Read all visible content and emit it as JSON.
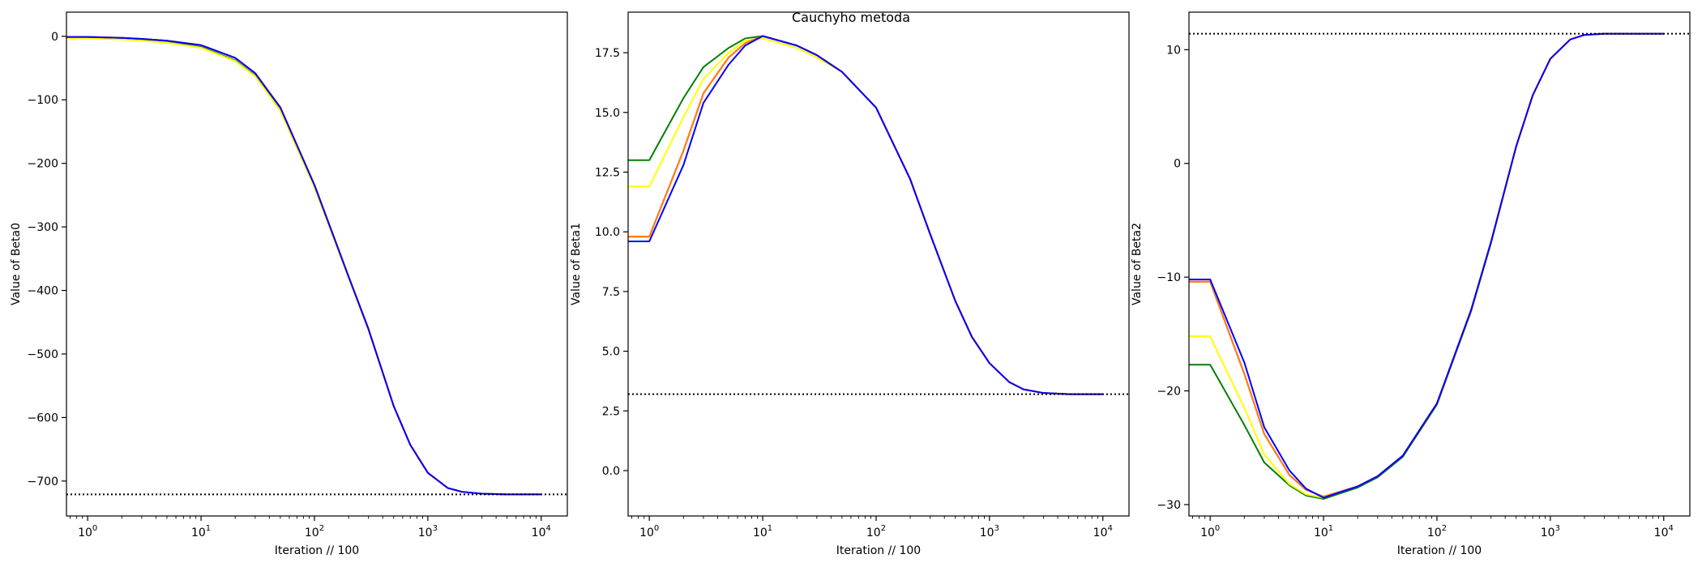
{
  "figure": {
    "suptitle": "Cauchyho metoda"
  },
  "chart_data": [
    {
      "type": "line",
      "xlabel": "Iteration // 100",
      "ylabel": "Value of Beta0",
      "xscale": "log",
      "xlim": [
        0.65,
        17000
      ],
      "ylim": [
        -755,
        38
      ],
      "xticks": [
        1,
        10,
        100,
        1000,
        10000
      ],
      "xtick_labels": [
        {
          "base": "10",
          "exp": "0"
        },
        {
          "base": "10",
          "exp": "1"
        },
        {
          "base": "10",
          "exp": "2"
        },
        {
          "base": "10",
          "exp": "3"
        },
        {
          "base": "10",
          "exp": "4"
        }
      ],
      "yticks": [
        0,
        -100,
        -200,
        -300,
        -400,
        -500,
        -600,
        -700
      ],
      "ytick_labels": [
        "0",
        "−100",
        "−200",
        "−300",
        "−400",
        "−500",
        "−600",
        "−700"
      ],
      "reference_line": {
        "y": -721.0,
        "style": "dotted",
        "color": "#000000"
      },
      "grid": false,
      "series": [
        {
          "color": "#008000",
          "x": [
            0.65,
            1,
            2,
            3,
            5,
            10,
            20,
            30,
            50,
            100,
            200,
            300,
            500,
            700,
            1000,
            1500,
            2000,
            3000,
            5000,
            10000
          ],
          "y": [
            -1.5,
            -2,
            -4,
            -6,
            -9,
            -17,
            -38,
            -62,
            -116,
            -237,
            -380,
            -462,
            -582,
            -643,
            -687,
            -711,
            -717,
            -720,
            -721,
            -721
          ]
        },
        {
          "color": "#ffff00",
          "x": [
            0.65,
            1,
            2,
            3,
            5,
            10,
            20,
            30,
            50,
            100,
            200,
            300,
            500,
            700,
            1000,
            1500,
            2000,
            3000,
            5000,
            10000
          ],
          "y": [
            -3,
            -3.5,
            -5,
            -7,
            -10,
            -18,
            -39,
            -63,
            -117,
            -238,
            -380,
            -462,
            -582,
            -643,
            -687,
            -711,
            -717,
            -720,
            -721,
            -721
          ]
        },
        {
          "color": "#ff0000",
          "x": [
            0.65,
            1,
            2,
            3,
            5,
            10,
            20,
            30,
            50,
            100,
            200,
            300,
            500,
            700,
            1000,
            1500,
            2000,
            3000,
            5000,
            10000
          ],
          "y": [
            -1,
            -1,
            -2.5,
            -4,
            -7,
            -14,
            -34,
            -58,
            -112,
            -234,
            -378,
            -461,
            -582,
            -643,
            -687,
            -711,
            -717,
            -720,
            -721,
            -721
          ]
        },
        {
          "color": "#ff7f0e",
          "x": [
            0.65,
            1,
            2,
            3,
            5,
            10,
            20,
            30,
            50,
            100,
            200,
            300,
            500,
            700,
            1000,
            1500,
            2000,
            3000,
            5000,
            10000
          ],
          "y": [
            -1,
            -1,
            -2.5,
            -4,
            -7,
            -14,
            -34,
            -58,
            -112,
            -234,
            -378,
            -461,
            -582,
            -643,
            -687,
            -711,
            -717,
            -720,
            -721,
            -721
          ]
        },
        {
          "color": "#0000ff",
          "x": [
            0.65,
            1,
            2,
            3,
            5,
            10,
            20,
            30,
            50,
            100,
            200,
            300,
            500,
            700,
            1000,
            1500,
            2000,
            3000,
            5000,
            10000
          ],
          "y": [
            -1,
            -1,
            -2.5,
            -4,
            -7,
            -14,
            -34,
            -58,
            -112,
            -234,
            -378,
            -461,
            -582,
            -643,
            -687,
            -711,
            -717,
            -720,
            -721,
            -721
          ]
        }
      ]
    },
    {
      "type": "line",
      "xlabel": "Iteration // 100",
      "ylabel": "Value of Beta1",
      "xscale": "log",
      "xlim": [
        0.65,
        17000
      ],
      "ylim": [
        -1.9,
        19.2
      ],
      "xticks": [
        1,
        10,
        100,
        1000,
        10000
      ],
      "xtick_labels": [
        {
          "base": "10",
          "exp": "0"
        },
        {
          "base": "10",
          "exp": "1"
        },
        {
          "base": "10",
          "exp": "2"
        },
        {
          "base": "10",
          "exp": "3"
        },
        {
          "base": "10",
          "exp": "4"
        }
      ],
      "yticks": [
        0.0,
        2.5,
        5.0,
        7.5,
        10.0,
        12.5,
        15.0,
        17.5
      ],
      "ytick_labels": [
        "0.0",
        "2.5",
        "5.0",
        "7.5",
        "10.0",
        "12.5",
        "15.0",
        "17.5"
      ],
      "reference_line": {
        "y": 3.2,
        "style": "dotted",
        "color": "#000000"
      },
      "grid": false,
      "series": [
        {
          "color": "#008000",
          "x": [
            0.65,
            1,
            2,
            3,
            5,
            7,
            10,
            20,
            30,
            50,
            100,
            200,
            300,
            500,
            700,
            1000,
            1500,
            2000,
            3000,
            5000,
            10000
          ],
          "y": [
            13.0,
            13.0,
            15.6,
            16.9,
            17.7,
            18.1,
            18.2,
            17.8,
            17.4,
            16.7,
            15.2,
            12.2,
            9.9,
            7.1,
            5.6,
            4.5,
            3.7,
            3.4,
            3.25,
            3.2,
            3.2
          ]
        },
        {
          "color": "#ffff00",
          "x": [
            0.65,
            1,
            2,
            3,
            5,
            7,
            10,
            20,
            30,
            50,
            100,
            200,
            300,
            500,
            700,
            1000,
            1500,
            2000,
            3000,
            5000,
            10000
          ],
          "y": [
            11.9,
            11.9,
            14.8,
            16.4,
            17.5,
            18.0,
            18.1,
            17.7,
            17.3,
            16.7,
            15.2,
            12.2,
            9.9,
            7.1,
            5.6,
            4.5,
            3.7,
            3.4,
            3.25,
            3.2,
            3.2
          ]
        },
        {
          "color": "#ff0000",
          "x": [
            0.65,
            1,
            2,
            3,
            5,
            7,
            10,
            20,
            30,
            50,
            100,
            200,
            300,
            500,
            700,
            1000,
            1500,
            2000,
            3000,
            5000,
            10000
          ],
          "y": [
            9.8,
            9.8,
            13.4,
            15.8,
            17.3,
            17.9,
            18.2,
            17.8,
            17.4,
            16.7,
            15.2,
            12.2,
            9.9,
            7.1,
            5.6,
            4.5,
            3.7,
            3.4,
            3.25,
            3.2,
            3.2
          ]
        },
        {
          "color": "#ff7f0e",
          "x": [
            0.65,
            1,
            2,
            3,
            5,
            7,
            10,
            20,
            30,
            50,
            100,
            200,
            300,
            500,
            700,
            1000,
            1500,
            2000,
            3000,
            5000,
            10000
          ],
          "y": [
            9.8,
            9.8,
            13.4,
            15.8,
            17.3,
            17.9,
            18.2,
            17.8,
            17.4,
            16.7,
            15.2,
            12.2,
            9.9,
            7.1,
            5.6,
            4.5,
            3.7,
            3.4,
            3.25,
            3.2,
            3.2
          ]
        },
        {
          "color": "#0000ff",
          "x": [
            0.65,
            1,
            2,
            3,
            5,
            7,
            10,
            20,
            30,
            50,
            100,
            200,
            300,
            500,
            700,
            1000,
            1500,
            2000,
            3000,
            5000,
            10000
          ],
          "y": [
            9.6,
            9.6,
            12.8,
            15.4,
            17.0,
            17.8,
            18.2,
            17.8,
            17.4,
            16.7,
            15.2,
            12.2,
            9.9,
            7.1,
            5.6,
            4.5,
            3.7,
            3.4,
            3.25,
            3.2,
            3.2
          ]
        }
      ]
    },
    {
      "type": "line",
      "xlabel": "Iteration // 100",
      "ylabel": "Value of Beta2",
      "xscale": "log",
      "xlim": [
        0.65,
        17000
      ],
      "ylim": [
        -31.0,
        13.3
      ],
      "xticks": [
        1,
        10,
        100,
        1000,
        10000
      ],
      "xtick_labels": [
        {
          "base": "10",
          "exp": "0"
        },
        {
          "base": "10",
          "exp": "1"
        },
        {
          "base": "10",
          "exp": "2"
        },
        {
          "base": "10",
          "exp": "3"
        },
        {
          "base": "10",
          "exp": "4"
        }
      ],
      "yticks": [
        10,
        0,
        -10,
        -20,
        -30
      ],
      "ytick_labels": [
        "10",
        "0",
        "−10",
        "−20",
        "−30"
      ],
      "reference_line": {
        "y": 11.4,
        "style": "dotted",
        "color": "#000000"
      },
      "grid": false,
      "series": [
        {
          "color": "#008000",
          "x": [
            0.65,
            1,
            2,
            3,
            5,
            7,
            10,
            20,
            30,
            50,
            100,
            200,
            300,
            500,
            700,
            1000,
            1500,
            2000,
            3000,
            5000,
            10000
          ],
          "y": [
            -17.7,
            -17.7,
            -23.0,
            -26.3,
            -28.3,
            -29.2,
            -29.5,
            -28.5,
            -27.6,
            -25.8,
            -21.2,
            -13.0,
            -7.0,
            1.5,
            6.0,
            9.2,
            10.9,
            11.3,
            11.4,
            11.4,
            11.4
          ]
        },
        {
          "color": "#ffff00",
          "x": [
            0.65,
            1,
            2,
            3,
            5,
            7,
            10,
            20,
            30,
            50,
            100,
            200,
            300,
            500,
            700,
            1000,
            1500,
            2000,
            3000,
            5000,
            10000
          ],
          "y": [
            -15.2,
            -15.2,
            -21.5,
            -25.6,
            -28.2,
            -29.1,
            -29.4,
            -28.4,
            -27.5,
            -25.7,
            -21.1,
            -12.9,
            -6.9,
            1.5,
            6.0,
            9.2,
            10.9,
            11.3,
            11.4,
            11.4,
            11.4
          ]
        },
        {
          "color": "#ff0000",
          "x": [
            0.65,
            1,
            2,
            3,
            5,
            7,
            10,
            20,
            30,
            50,
            100,
            200,
            300,
            500,
            700,
            1000,
            1500,
            2000,
            3000,
            5000,
            10000
          ],
          "y": [
            -10.4,
            -10.4,
            -18.5,
            -23.8,
            -27.4,
            -28.7,
            -29.3,
            -28.4,
            -27.5,
            -25.7,
            -21.1,
            -12.9,
            -6.9,
            1.5,
            6.0,
            9.2,
            10.9,
            11.3,
            11.4,
            11.4,
            11.4
          ]
        },
        {
          "color": "#ff7f0e",
          "x": [
            0.65,
            1,
            2,
            3,
            5,
            7,
            10,
            20,
            30,
            50,
            100,
            200,
            300,
            500,
            700,
            1000,
            1500,
            2000,
            3000,
            5000,
            10000
          ],
          "y": [
            -10.4,
            -10.4,
            -18.5,
            -23.8,
            -27.4,
            -28.7,
            -29.3,
            -28.4,
            -27.5,
            -25.7,
            -21.1,
            -12.9,
            -6.9,
            1.5,
            6.0,
            9.2,
            10.9,
            11.3,
            11.4,
            11.4,
            11.4
          ]
        },
        {
          "color": "#0000ff",
          "x": [
            0.65,
            1,
            2,
            3,
            5,
            7,
            10,
            20,
            30,
            50,
            100,
            200,
            300,
            500,
            700,
            1000,
            1500,
            2000,
            3000,
            5000,
            10000
          ],
          "y": [
            -10.2,
            -10.2,
            -17.5,
            -23.2,
            -27.0,
            -28.6,
            -29.4,
            -28.4,
            -27.5,
            -25.7,
            -21.1,
            -12.9,
            -6.9,
            1.5,
            6.0,
            9.2,
            10.9,
            11.3,
            11.4,
            11.4,
            11.4
          ]
        }
      ]
    }
  ]
}
